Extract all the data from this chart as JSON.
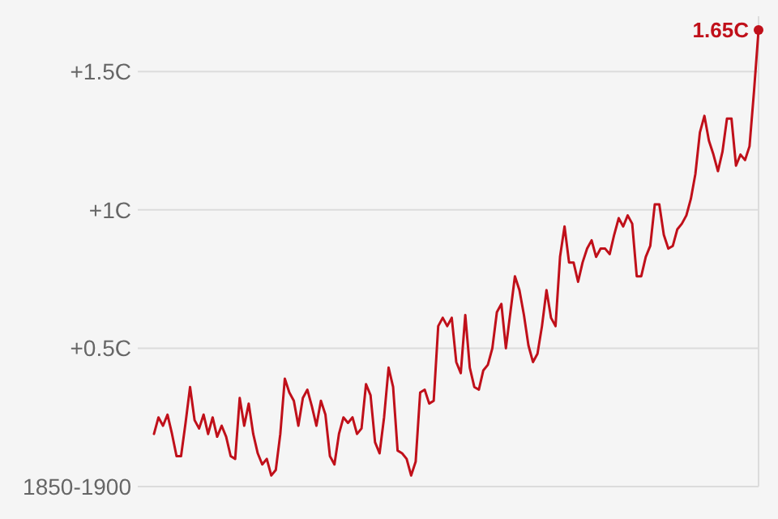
{
  "chart_data": {
    "type": "line",
    "categories": [
      null,
      null,
      null,
      null,
      null,
      null,
      null,
      null,
      null,
      null,
      null,
      null,
      null,
      null,
      null,
      null,
      null,
      null,
      null,
      null,
      null,
      null,
      null,
      null,
      null,
      null,
      null,
      null,
      null,
      null,
      null,
      null,
      null,
      null,
      null,
      null,
      null,
      null,
      null,
      null,
      null,
      null,
      null,
      null,
      null,
      null,
      null,
      null,
      null,
      null,
      null,
      null,
      null,
      null,
      null,
      null,
      null,
      null,
      null,
      null,
      null,
      null,
      null,
      null,
      null,
      null,
      null,
      null,
      null,
      null,
      null,
      null,
      null,
      null,
      null,
      null,
      null,
      null,
      null,
      null,
      null,
      null,
      null,
      null,
      null,
      null,
      null,
      null,
      null,
      null,
      null,
      null,
      null,
      null,
      null,
      null,
      null,
      null,
      null,
      null,
      null,
      null,
      null,
      null,
      null,
      null,
      null,
      null,
      null,
      null,
      null,
      null,
      null,
      null,
      null,
      null,
      null,
      null,
      null,
      null,
      null,
      null,
      null,
      null,
      null,
      null,
      null,
      null,
      null,
      null,
      null,
      null,
      null,
      null,
      null
    ],
    "series": [
      {
        "color": "#c0101a",
        "values": [
          0.19,
          0.25,
          0.22,
          0.26,
          0.19,
          0.11,
          0.11,
          0.23,
          0.36,
          0.24,
          0.21,
          0.26,
          0.19,
          0.25,
          0.18,
          0.22,
          0.18,
          0.11,
          0.1,
          0.32,
          0.22,
          0.3,
          0.19,
          0.12,
          0.08,
          0.1,
          0.04,
          0.06,
          0.19,
          0.39,
          0.34,
          0.31,
          0.22,
          0.32,
          0.35,
          0.29,
          0.22,
          0.31,
          0.26,
          0.11,
          0.08,
          0.19,
          0.25,
          0.23,
          0.25,
          0.19,
          0.21,
          0.37,
          0.33,
          0.16,
          0.12,
          0.25,
          0.43,
          0.36,
          0.13,
          0.12,
          0.1,
          0.04,
          0.09,
          0.34,
          0.35,
          0.3,
          0.31,
          0.58,
          0.61,
          0.58,
          0.61,
          0.45,
          0.41,
          0.62,
          0.43,
          0.36,
          0.35,
          0.42,
          0.44,
          0.5,
          0.63,
          0.66,
          0.5,
          0.63,
          0.76,
          0.71,
          0.62,
          0.51,
          0.45,
          0.48,
          0.58,
          0.71,
          0.61,
          0.58,
          0.83,
          0.94,
          0.81,
          0.81,
          0.74,
          0.81,
          0.86,
          0.89,
          0.83,
          0.86,
          0.86,
          0.84,
          0.91,
          0.97,
          0.94,
          0.98,
          0.95,
          0.76,
          0.76,
          0.83,
          0.87,
          1.02,
          1.02,
          0.91,
          0.86,
          0.87,
          0.93,
          0.95,
          0.98,
          1.04,
          1.13,
          1.28,
          1.34,
          1.25,
          1.2,
          1.14,
          1.21,
          1.33,
          1.33,
          1.16,
          1.2,
          1.18,
          1.23,
          1.43,
          1.65
        ]
      }
    ],
    "ylim": [
      0,
      1.7
    ],
    "yticks": [
      {
        "value": 0,
        "label": "1850-1900"
      },
      {
        "value": 0.5,
        "label": "+0.5C"
      },
      {
        "value": 1,
        "label": "+1C"
      },
      {
        "value": 1.5,
        "label": "+1.5C"
      }
    ],
    "grid": "y",
    "marker": "none",
    "line_style": "solid",
    "annotations": [
      "1.65C"
    ]
  }
}
